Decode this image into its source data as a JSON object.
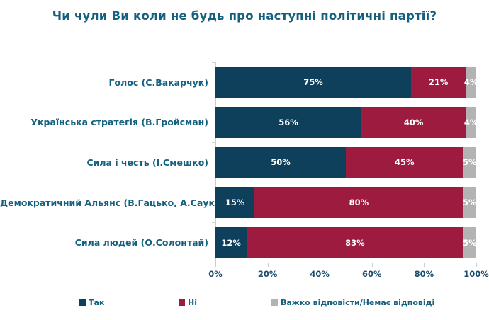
{
  "chart_data": {
    "type": "bar",
    "orientation": "horizontal",
    "stacked": true,
    "title": "Чи чули Ви коли не будь про наступні політичні партії?",
    "categories": [
      "Голос (С.Вакарчук)",
      "Українська стратегія (В.Гройсман)",
      "Сила і честь (І.Смешко)",
      "Демократичний Альянс (В.Гацько, А.Саук)",
      "Сила людей (О.Солонтай)"
    ],
    "series": [
      {
        "name": "Так",
        "color": "#0e3f5b",
        "values": [
          75,
          56,
          50,
          15,
          12
        ]
      },
      {
        "name": "Ні",
        "color": "#9e1b40",
        "values": [
          21,
          40,
          45,
          80,
          83
        ]
      },
      {
        "name": "Важко відповісти/Немає відповіді",
        "color": "#b3b3b3",
        "values": [
          4,
          4,
          5,
          5,
          5
        ]
      }
    ],
    "x_ticks": [
      "0%",
      "20%",
      "40%",
      "60%",
      "80%",
      "100%"
    ],
    "xlim": [
      0,
      100
    ],
    "value_suffix": "%",
    "value_label_color": "#ffffff",
    "legend_position": "bottom",
    "grid": false,
    "title_color": "#14607f",
    "axis_text_color": "#1c4c6b"
  }
}
